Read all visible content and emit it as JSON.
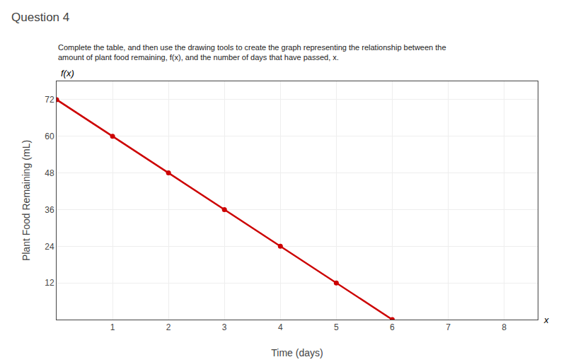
{
  "chart_data": {
    "type": "line",
    "title": "Question 4",
    "subtitle": "Complete the table, and then use the drawing tools to create the graph representing the relationship between the amount of plant food remaining, f(x), and the number of days that have passed, x.",
    "x_label": "Time (days)",
    "y_label": "Plant Food Remaining (mL)",
    "annotations": [
      "x",
      "f(x)"
    ],
    "x": [
      0,
      1,
      2,
      3,
      4,
      5,
      6
    ],
    "values": [
      72,
      60,
      48,
      36,
      24,
      12,
      0
    ],
    "color": "#cc0000",
    "marker": "circle",
    "xlim": [
      0,
      8.6
    ],
    "ylim": [
      0,
      78
    ],
    "xticks": [
      1,
      2,
      3,
      4,
      5,
      6,
      7,
      8
    ],
    "yticks": [
      12,
      24,
      36,
      48,
      60,
      72
    ],
    "grid": true
  }
}
